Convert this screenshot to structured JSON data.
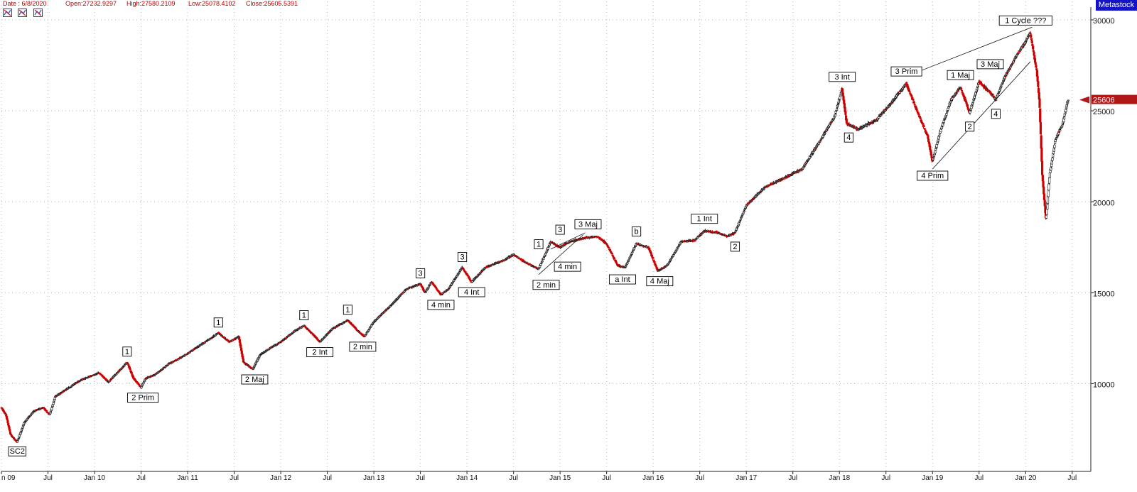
{
  "header": {
    "date": "Date : 6/8/2020",
    "open": "Open:27232.9297",
    "high": "High:27580.2109",
    "low": "Low:25078.4102",
    "close": "Close:25605.5391"
  },
  "brand": "Metastock",
  "toolbar_icons": [
    "chart-tool-icon",
    "chart-tool-icon",
    "chart-tool-icon"
  ],
  "colors": {
    "up": "#1a1a1a",
    "down": "#cc0000",
    "grid": "#b8b8b8",
    "label_border": "#000000",
    "price_marker": "#b01818",
    "brand": "#1515c8"
  },
  "chart_data": {
    "type": "line",
    "style": "candlestick",
    "xlim": [
      2009.0,
      2020.7
    ],
    "ylim": [
      5500,
      30500
    ],
    "grid": true,
    "y_ticks": [
      10000,
      15000,
      20000,
      25000,
      30000
    ],
    "y_tick_labels": [
      "10000",
      "15000",
      "20000",
      "25000",
      "30000"
    ],
    "x_ticks": [
      2009.0,
      2009.5,
      2010.0,
      2010.5,
      2011.0,
      2011.5,
      2012.0,
      2012.5,
      2013.0,
      2013.5,
      2014.0,
      2014.5,
      2015.0,
      2015.5,
      2016.0,
      2016.5,
      2017.0,
      2017.5,
      2018.0,
      2018.5,
      2019.0,
      2019.5,
      2020.0,
      2020.5
    ],
    "x_tick_labels": [
      "n 09",
      "Jul",
      "Jan 10",
      "Jul",
      "Jan 11",
      "Jul",
      "Jan 12",
      "Jul",
      "Jan 13",
      "Jul",
      "Jan 14",
      "Jul",
      "Jan 15",
      "Jul",
      "Jan 16",
      "Jul",
      "Jan 17",
      "Jul",
      "Jan 18",
      "Jul",
      "Jan 19",
      "Jul",
      "Jan 20",
      "Jul"
    ],
    "last_price_label": "25606",
    "last_price": 25606,
    "price_path": [
      [
        2009.0,
        8700
      ],
      [
        2009.05,
        8300
      ],
      [
        2009.1,
        7200
      ],
      [
        2009.17,
        6800
      ],
      [
        2009.25,
        7900
      ],
      [
        2009.35,
        8500
      ],
      [
        2009.45,
        8700
      ],
      [
        2009.52,
        8300
      ],
      [
        2009.58,
        9300
      ],
      [
        2009.7,
        9700
      ],
      [
        2009.85,
        10200
      ],
      [
        2009.95,
        10400
      ],
      [
        2010.05,
        10600
      ],
      [
        2010.15,
        10100
      ],
      [
        2010.3,
        10900
      ],
      [
        2010.35,
        11200
      ],
      [
        2010.42,
        10300
      ],
      [
        2010.5,
        9800
      ],
      [
        2010.55,
        10300
      ],
      [
        2010.65,
        10500
      ],
      [
        2010.8,
        11100
      ],
      [
        2010.95,
        11500
      ],
      [
        2011.1,
        12000
      ],
      [
        2011.25,
        12500
      ],
      [
        2011.33,
        12800
      ],
      [
        2011.45,
        12300
      ],
      [
        2011.55,
        12600
      ],
      [
        2011.6,
        11200
      ],
      [
        2011.7,
        10800
      ],
      [
        2011.78,
        11600
      ],
      [
        2011.9,
        12000
      ],
      [
        2012.0,
        12300
      ],
      [
        2012.15,
        12900
      ],
      [
        2012.25,
        13200
      ],
      [
        2012.35,
        12700
      ],
      [
        2012.42,
        12300
      ],
      [
        2012.55,
        13000
      ],
      [
        2012.72,
        13500
      ],
      [
        2012.85,
        12800
      ],
      [
        2012.9,
        12600
      ],
      [
        2013.0,
        13400
      ],
      [
        2013.2,
        14400
      ],
      [
        2013.35,
        15200
      ],
      [
        2013.5,
        15500
      ],
      [
        2013.55,
        15000
      ],
      [
        2013.62,
        15600
      ],
      [
        2013.72,
        14900
      ],
      [
        2013.8,
        15200
      ],
      [
        2013.95,
        16400
      ],
      [
        2014.05,
        15600
      ],
      [
        2014.2,
        16400
      ],
      [
        2014.4,
        16800
      ],
      [
        2014.5,
        17100
      ],
      [
        2014.62,
        16700
      ],
      [
        2014.77,
        16300
      ],
      [
        2014.9,
        17800
      ],
      [
        2015.0,
        17500
      ],
      [
        2015.1,
        17800
      ],
      [
        2015.25,
        18000
      ],
      [
        2015.4,
        18100
      ],
      [
        2015.5,
        17700
      ],
      [
        2015.62,
        16500
      ],
      [
        2015.7,
        16400
      ],
      [
        2015.82,
        17700
      ],
      [
        2015.95,
        17500
      ],
      [
        2016.05,
        16200
      ],
      [
        2016.15,
        16500
      ],
      [
        2016.3,
        17800
      ],
      [
        2016.45,
        17900
      ],
      [
        2016.55,
        18400
      ],
      [
        2016.7,
        18300
      ],
      [
        2016.8,
        18100
      ],
      [
        2016.88,
        18300
      ],
      [
        2017.0,
        19800
      ],
      [
        2017.2,
        20800
      ],
      [
        2017.4,
        21300
      ],
      [
        2017.6,
        21800
      ],
      [
        2017.8,
        23400
      ],
      [
        2017.95,
        24700
      ],
      [
        2018.03,
        26200
      ],
      [
        2018.08,
        24300
      ],
      [
        2018.2,
        24000
      ],
      [
        2018.4,
        24500
      ],
      [
        2018.55,
        25400
      ],
      [
        2018.72,
        26500
      ],
      [
        2018.85,
        24800
      ],
      [
        2018.95,
        23600
      ],
      [
        2019.0,
        22200
      ],
      [
        2019.08,
        23800
      ],
      [
        2019.2,
        25600
      ],
      [
        2019.3,
        26300
      ],
      [
        2019.4,
        24900
      ],
      [
        2019.5,
        26600
      ],
      [
        2019.62,
        26000
      ],
      [
        2019.68,
        25600
      ],
      [
        2019.78,
        26900
      ],
      [
        2019.9,
        28000
      ],
      [
        2020.0,
        28800
      ],
      [
        2020.05,
        29300
      ],
      [
        2020.08,
        28400
      ],
      [
        2020.12,
        27200
      ],
      [
        2020.15,
        25500
      ],
      [
        2020.18,
        21500
      ],
      [
        2020.22,
        19000
      ],
      [
        2020.26,
        21500
      ],
      [
        2020.32,
        23400
      ],
      [
        2020.4,
        24300
      ],
      [
        2020.45,
        25500
      ],
      [
        2020.46,
        25606
      ]
    ],
    "trendlines": [
      [
        [
          2014.77,
          16000
        ],
        [
          2015.25,
          18200
        ]
      ],
      [
        [
          2014.9,
          17400
        ],
        [
          2015.27,
          18300
        ]
      ],
      [
        [
          2018.72,
          26900
        ],
        [
          2020.07,
          29600
        ]
      ],
      [
        [
          2019.0,
          21800
        ],
        [
          2020.05,
          27700
        ]
      ]
    ],
    "annotations": [
      {
        "text": "SC2",
        "x": 2009.17,
        "y": 6850,
        "pos": "below"
      },
      {
        "text": "1",
        "x": 2010.35,
        "y": 11200,
        "pos": "above"
      },
      {
        "text": "2 Prim",
        "x": 2010.52,
        "y": 9800,
        "pos": "below"
      },
      {
        "text": "1",
        "x": 2011.33,
        "y": 12800,
        "pos": "above"
      },
      {
        "text": "2 Maj",
        "x": 2011.72,
        "y": 10800,
        "pos": "below"
      },
      {
        "text": "1",
        "x": 2012.25,
        "y": 13200,
        "pos": "above"
      },
      {
        "text": "2 Int",
        "x": 2012.42,
        "y": 12300,
        "pos": "below"
      },
      {
        "text": "1",
        "x": 2012.72,
        "y": 13500,
        "pos": "above"
      },
      {
        "text": "2 min",
        "x": 2012.88,
        "y": 12600,
        "pos": "below"
      },
      {
        "text": "3",
        "x": 2013.5,
        "y": 15500,
        "pos": "above"
      },
      {
        "text": "4 min",
        "x": 2013.72,
        "y": 14900,
        "pos": "below"
      },
      {
        "text": "3",
        "x": 2013.95,
        "y": 16400,
        "pos": "above"
      },
      {
        "text": "4 Int",
        "x": 2014.05,
        "y": 15600,
        "pos": "below"
      },
      {
        "text": "1",
        "x": 2014.77,
        "y": 17100,
        "pos": "above"
      },
      {
        "text": "2 min",
        "x": 2014.85,
        "y": 16000,
        "pos": "below"
      },
      {
        "text": "3",
        "x": 2015.0,
        "y": 17900,
        "pos": "above"
      },
      {
        "text": "4 min",
        "x": 2015.08,
        "y": 17000,
        "pos": "below"
      },
      {
        "text": "3 Maj",
        "x": 2015.3,
        "y": 18200,
        "pos": "above"
      },
      {
        "text": "b",
        "x": 2015.82,
        "y": 17800,
        "pos": "above"
      },
      {
        "text": "a Int",
        "x": 2015.67,
        "y": 16300,
        "pos": "below"
      },
      {
        "text": "4 Maj",
        "x": 2016.07,
        "y": 16200,
        "pos": "below"
      },
      {
        "text": "1 Int",
        "x": 2016.55,
        "y": 18500,
        "pos": "above"
      },
      {
        "text": "2",
        "x": 2016.88,
        "y": 18100,
        "pos": "below"
      },
      {
        "text": "3 Int",
        "x": 2018.03,
        "y": 26300,
        "pos": "above"
      },
      {
        "text": "4",
        "x": 2018.1,
        "y": 24100,
        "pos": "below"
      },
      {
        "text": "3 Prim",
        "x": 2018.72,
        "y": 26600,
        "pos": "above"
      },
      {
        "text": "4 Prim",
        "x": 2019.0,
        "y": 22000,
        "pos": "below"
      },
      {
        "text": "1 Maj",
        "x": 2019.3,
        "y": 26400,
        "pos": "above"
      },
      {
        "text": "2",
        "x": 2019.4,
        "y": 24700,
        "pos": "below"
      },
      {
        "text": "3 Maj",
        "x": 2019.62,
        "y": 27000,
        "pos": "above"
      },
      {
        "text": "4",
        "x": 2019.68,
        "y": 25400,
        "pos": "below"
      },
      {
        "text": "1 Cycle ???",
        "x": 2020.0,
        "y": 29400,
        "pos": "above"
      }
    ]
  }
}
